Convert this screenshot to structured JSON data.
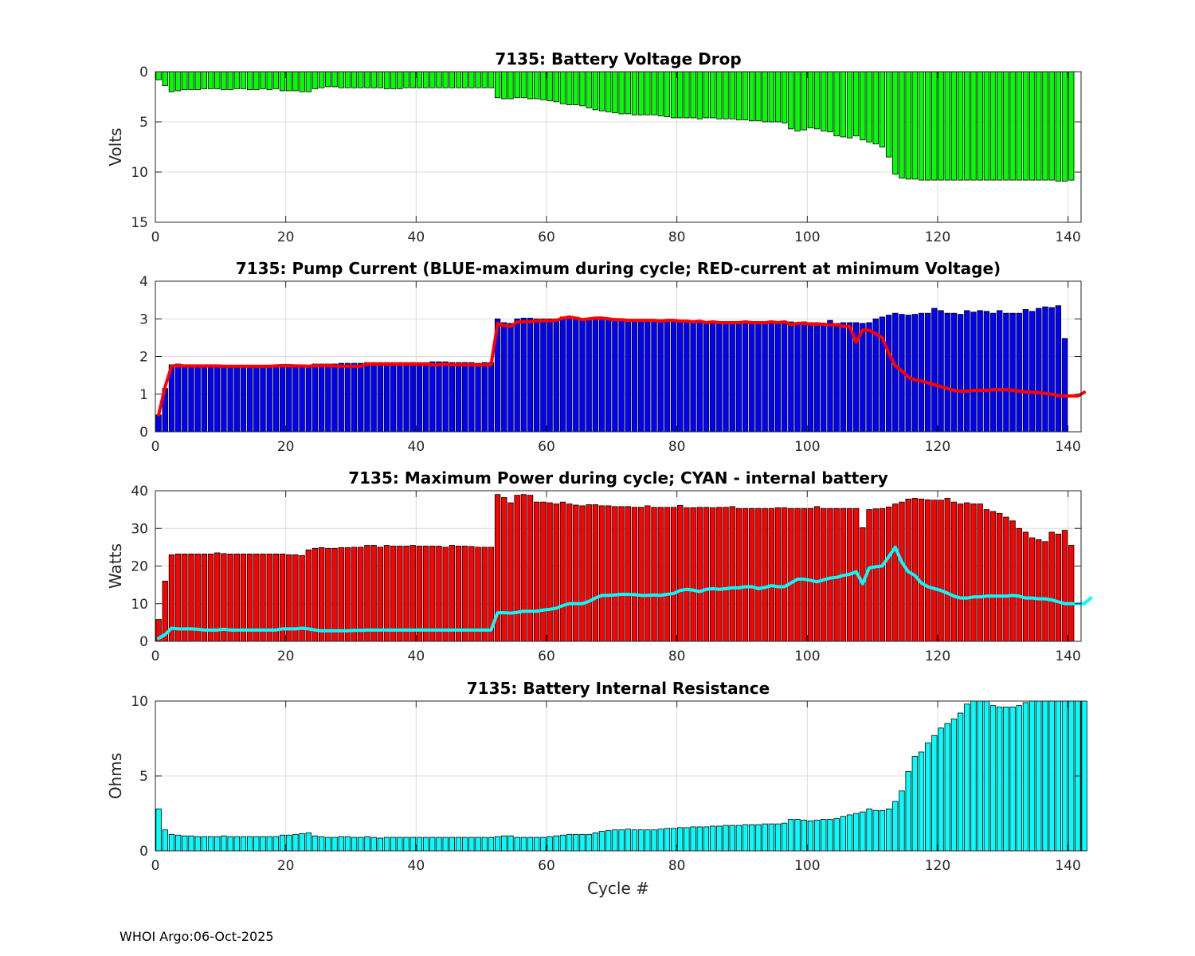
{
  "footer": "WHOI Argo:06-Oct-2025",
  "colors": {
    "voltage": "#00ff00",
    "pump": "#0000ff",
    "power": "#ff0000",
    "resistance": "#00ffff",
    "red_line": "#ff0000",
    "cyan_line": "#00ffff"
  },
  "chart_data": [
    {
      "type": "bar",
      "title": "7135: Battery Voltage Drop",
      "xlabel": "",
      "ylabel": "Volts",
      "xlim": [
        0,
        142
      ],
      "ylim": [
        0,
        15
      ],
      "y_reversed": true,
      "xticks": [
        0,
        20,
        40,
        60,
        80,
        100,
        120,
        140
      ],
      "yticks": [
        0,
        5,
        10,
        15
      ],
      "x_start": 0,
      "series": [
        {
          "name": "Voltage drop",
          "color": "#00ff00",
          "values": [
            0.8,
            1.4,
            2.0,
            1.9,
            1.8,
            1.8,
            1.8,
            1.7,
            1.7,
            1.7,
            1.8,
            1.8,
            1.7,
            1.7,
            1.8,
            1.8,
            1.7,
            1.8,
            1.7,
            1.9,
            1.9,
            1.9,
            2.0,
            2.0,
            1.7,
            1.6,
            1.5,
            1.5,
            1.6,
            1.6,
            1.6,
            1.6,
            1.6,
            1.6,
            1.6,
            1.7,
            1.7,
            1.7,
            1.6,
            1.6,
            1.6,
            1.6,
            1.6,
            1.6,
            1.6,
            1.6,
            1.6,
            1.6,
            1.6,
            1.6,
            1.6,
            1.6,
            2.6,
            2.7,
            2.7,
            2.6,
            2.6,
            2.7,
            2.7,
            2.8,
            2.9,
            3.0,
            3.2,
            3.3,
            3.3,
            3.4,
            3.6,
            3.8,
            3.9,
            4.0,
            4.1,
            4.2,
            4.2,
            4.3,
            4.3,
            4.3,
            4.3,
            4.4,
            4.5,
            4.6,
            4.6,
            4.6,
            4.6,
            4.7,
            4.6,
            4.6,
            4.7,
            4.7,
            4.7,
            4.8,
            4.8,
            4.9,
            4.9,
            5.0,
            5.0,
            5.0,
            5.1,
            5.7,
            5.9,
            5.8,
            5.6,
            5.7,
            5.9,
            6.0,
            6.4,
            6.5,
            6.6,
            6.4,
            6.8,
            7.0,
            7.2,
            7.5,
            8.5,
            10.2,
            10.6,
            10.7,
            10.7,
            10.8,
            10.8,
            10.8,
            10.8,
            10.8,
            10.8,
            10.8,
            10.8,
            10.8,
            10.8,
            10.8,
            10.8,
            10.8,
            10.8,
            10.8,
            10.8,
            10.8,
            10.8,
            10.8,
            10.8,
            10.8,
            10.9,
            10.9,
            10.8
          ]
        }
      ]
    },
    {
      "type": "bar",
      "title": "7135: Pump Current (BLUE-maximum during cycle; RED-current at minimum Voltage)",
      "xlabel": "",
      "ylabel": "",
      "xlim": [
        0,
        142
      ],
      "ylim": [
        0,
        4
      ],
      "y_reversed": false,
      "xticks": [
        0,
        20,
        40,
        60,
        80,
        100,
        120,
        140
      ],
      "yticks": [
        0,
        1,
        2,
        3,
        4
      ],
      "x_start": 0,
      "series": [
        {
          "name": "Maximum during cycle",
          "color": "#0000ff",
          "values": [
            0.45,
            1.15,
            1.78,
            1.8,
            1.78,
            1.78,
            1.78,
            1.78,
            1.78,
            1.78,
            1.76,
            1.76,
            1.76,
            1.76,
            1.76,
            1.76,
            1.76,
            1.76,
            1.76,
            1.78,
            1.78,
            1.78,
            1.78,
            1.76,
            1.8,
            1.8,
            1.8,
            1.8,
            1.82,
            1.82,
            1.82,
            1.82,
            1.84,
            1.84,
            1.84,
            1.84,
            1.84,
            1.84,
            1.84,
            1.84,
            1.84,
            1.84,
            1.86,
            1.86,
            1.86,
            1.84,
            1.84,
            1.84,
            1.84,
            1.82,
            1.84,
            1.84,
            3.0,
            2.9,
            2.88,
            3.0,
            3.02,
            3.02,
            3.0,
            3.0,
            3.0,
            3.0,
            3.05,
            3.05,
            3.05,
            3.0,
            3.02,
            3.02,
            3.02,
            3.0,
            3.0,
            3.0,
            2.98,
            2.98,
            2.98,
            2.98,
            2.98,
            2.98,
            2.98,
            2.98,
            2.96,
            2.96,
            2.94,
            2.94,
            2.92,
            2.94,
            2.92,
            2.92,
            2.92,
            2.92,
            2.92,
            2.92,
            2.92,
            2.92,
            2.92,
            2.92,
            2.94,
            2.92,
            2.9,
            2.92,
            2.9,
            2.9,
            2.88,
            2.96,
            2.88,
            2.9,
            2.9,
            2.9,
            2.88,
            2.9,
            3.0,
            3.05,
            3.1,
            3.15,
            3.12,
            3.1,
            3.12,
            3.15,
            3.15,
            3.28,
            3.22,
            3.15,
            3.15,
            3.12,
            3.22,
            3.18,
            3.22,
            3.2,
            3.15,
            3.22,
            3.15,
            3.15,
            3.15,
            3.25,
            3.2,
            3.28,
            3.32,
            3.3,
            3.35,
            2.48
          ]
        },
        {
          "name": "Current at minimum Voltage",
          "color": "#ff0000",
          "style": "line",
          "values": [
            0.45,
            1.2,
            1.75,
            1.76,
            1.75,
            1.75,
            1.75,
            1.75,
            1.75,
            1.75,
            1.74,
            1.74,
            1.74,
            1.74,
            1.74,
            1.74,
            1.74,
            1.74,
            1.75,
            1.76,
            1.76,
            1.75,
            1.75,
            1.74,
            1.76,
            1.76,
            1.76,
            1.75,
            1.74,
            1.74,
            1.74,
            1.74,
            1.8,
            1.8,
            1.8,
            1.8,
            1.8,
            1.8,
            1.8,
            1.8,
            1.8,
            1.8,
            1.78,
            1.78,
            1.8,
            1.78,
            1.78,
            1.78,
            1.78,
            1.77,
            1.78,
            1.78,
            2.88,
            2.82,
            2.8,
            2.92,
            2.92,
            2.92,
            2.95,
            2.95,
            2.95,
            2.96,
            3.02,
            3.05,
            3.02,
            2.98,
            3.0,
            3.02,
            3.02,
            3.0,
            2.98,
            2.98,
            2.96,
            2.96,
            2.96,
            2.96,
            2.96,
            2.94,
            2.96,
            2.96,
            2.94,
            2.94,
            2.92,
            2.94,
            2.9,
            2.92,
            2.9,
            2.9,
            2.9,
            2.9,
            2.92,
            2.9,
            2.9,
            2.9,
            2.92,
            2.9,
            2.92,
            2.85,
            2.88,
            2.88,
            2.86,
            2.86,
            2.86,
            2.84,
            2.84,
            2.8,
            2.8,
            2.38,
            2.7,
            2.7,
            2.6,
            2.5,
            2.1,
            1.75,
            1.62,
            1.45,
            1.38,
            1.35,
            1.3,
            1.25,
            1.2,
            1.15,
            1.1,
            1.08,
            1.08,
            1.1,
            1.1,
            1.1,
            1.12,
            1.12,
            1.12,
            1.1,
            1.08,
            1.06,
            1.05,
            1.04,
            1.02,
            1.0,
            0.96,
            0.95,
            0.95,
            0.95,
            1.05
          ]
        }
      ]
    },
    {
      "type": "bar",
      "title": "7135: Maximum Power during cycle; CYAN - internal battery",
      "xlabel": "",
      "ylabel": "Watts",
      "xlim": [
        0,
        142
      ],
      "ylim": [
        0,
        40
      ],
      "y_reversed": false,
      "xticks": [
        0,
        20,
        40,
        60,
        80,
        100,
        120,
        140
      ],
      "yticks": [
        0,
        10,
        20,
        30,
        40
      ],
      "x_start": 0,
      "series": [
        {
          "name": "Maximum power",
          "color": "#ff0000",
          "values": [
            5.8,
            16.0,
            23.0,
            23.2,
            23.2,
            23.2,
            23.2,
            23.2,
            23.2,
            23.5,
            23.3,
            23.2,
            23.2,
            23.2,
            23.2,
            23.2,
            23.2,
            23.2,
            23.2,
            23.2,
            23.0,
            23.0,
            22.8,
            24.3,
            24.7,
            24.9,
            24.7,
            24.7,
            24.9,
            24.9,
            25.0,
            25.0,
            25.5,
            25.5,
            25.0,
            25.5,
            25.3,
            25.3,
            25.3,
            25.5,
            25.3,
            25.3,
            25.3,
            25.3,
            25.0,
            25.5,
            25.3,
            25.3,
            25.2,
            25.0,
            25.0,
            25.0,
            39.0,
            38.2,
            36.8,
            38.8,
            39.0,
            38.8,
            37.0,
            37.0,
            36.8,
            36.5,
            37.0,
            36.5,
            36.2,
            36.0,
            36.3,
            36.3,
            36.0,
            36.0,
            35.8,
            35.8,
            35.8,
            35.6,
            35.6,
            36.0,
            35.6,
            35.6,
            35.6,
            35.6,
            36.1,
            35.5,
            35.5,
            35.6,
            35.6,
            35.5,
            35.6,
            35.6,
            35.8,
            35.3,
            35.3,
            35.3,
            35.3,
            35.3,
            35.3,
            35.5,
            35.5,
            35.3,
            35.3,
            35.3,
            35.3,
            35.8,
            35.3,
            35.3,
            35.3,
            35.3,
            35.3,
            35.3,
            30.2,
            35.0,
            35.2,
            35.3,
            35.7,
            36.5,
            37.0,
            37.8,
            38.0,
            37.8,
            37.6,
            37.5,
            37.5,
            38.0,
            37.0,
            36.5,
            36.8,
            36.5,
            36.5,
            35.0,
            34.5,
            34.0,
            33.0,
            32.0,
            30.0,
            29.0,
            27.5,
            27.0,
            26.5,
            29.0,
            28.5,
            29.5,
            25.5
          ]
        },
        {
          "name": "Internal battery",
          "color": "#00ffff",
          "style": "line",
          "values": [
            0.8,
            1.8,
            3.5,
            3.3,
            3.3,
            3.3,
            3.2,
            3.0,
            3.0,
            3.0,
            3.2,
            3.0,
            3.0,
            3.0,
            3.0,
            3.0,
            3.0,
            3.0,
            3.0,
            3.3,
            3.3,
            3.3,
            3.5,
            3.3,
            3.0,
            2.8,
            2.8,
            2.8,
            2.8,
            2.8,
            2.9,
            2.9,
            3.0,
            3.0,
            3.0,
            3.0,
            3.0,
            3.0,
            3.0,
            3.0,
            3.0,
            3.0,
            3.0,
            3.0,
            3.0,
            3.0,
            3.0,
            3.0,
            3.0,
            3.0,
            3.0,
            3.0,
            7.6,
            7.6,
            7.5,
            7.7,
            8.0,
            8.0,
            8.0,
            8.3,
            8.5,
            8.8,
            9.5,
            10.0,
            10.0,
            10.0,
            10.6,
            11.5,
            12.2,
            12.2,
            12.3,
            12.5,
            12.5,
            12.4,
            12.2,
            12.2,
            12.3,
            12.2,
            12.5,
            12.7,
            13.5,
            13.8,
            13.6,
            13.2,
            13.8,
            14.0,
            13.8,
            14.0,
            14.2,
            14.2,
            14.5,
            14.5,
            14.0,
            14.3,
            14.8,
            14.5,
            14.5,
            15.5,
            16.5,
            16.5,
            16.2,
            15.8,
            16.3,
            16.8,
            17.0,
            17.5,
            17.8,
            18.5,
            15.3,
            19.5,
            19.8,
            20.0,
            22.5,
            25.0,
            21.0,
            18.5,
            17.5,
            15.5,
            14.5,
            14.0,
            13.5,
            12.8,
            12.0,
            11.5,
            11.5,
            11.8,
            11.8,
            12.0,
            12.0,
            12.0,
            12.0,
            12.2,
            12.0,
            11.5,
            11.5,
            11.3,
            11.3,
            11.0,
            10.5,
            10.0,
            10.0,
            10.0,
            10.0,
            11.5
          ]
        }
      ]
    },
    {
      "type": "bar",
      "title": "7135: Battery Internal Resistance",
      "xlabel": "Cycle #",
      "ylabel": "Ohms",
      "xlim": [
        0,
        142
      ],
      "ylim": [
        0,
        10
      ],
      "y_reversed": false,
      "xticks": [
        0,
        20,
        40,
        60,
        80,
        100,
        120,
        140
      ],
      "yticks": [
        0,
        5,
        10
      ],
      "x_start": 0,
      "series": [
        {
          "name": "Internal resistance",
          "color": "#00ffff",
          "values": [
            2.8,
            1.4,
            1.1,
            1.05,
            1.0,
            1.0,
            0.95,
            0.95,
            0.95,
            0.95,
            1.0,
            0.95,
            0.95,
            0.95,
            0.95,
            0.95,
            0.95,
            0.95,
            0.95,
            1.05,
            1.05,
            1.1,
            1.15,
            1.2,
            1.0,
            0.95,
            0.9,
            0.9,
            0.95,
            0.95,
            0.9,
            0.9,
            0.95,
            0.9,
            0.85,
            0.9,
            0.9,
            0.9,
            0.9,
            0.9,
            0.9,
            0.9,
            0.9,
            0.9,
            0.9,
            0.9,
            0.9,
            0.9,
            0.9,
            0.9,
            0.9,
            0.9,
            0.95,
            1.0,
            1.0,
            0.9,
            0.9,
            0.9,
            0.9,
            0.9,
            0.95,
            1.0,
            1.05,
            1.1,
            1.1,
            1.1,
            1.1,
            1.2,
            1.3,
            1.35,
            1.4,
            1.4,
            1.45,
            1.4,
            1.4,
            1.4,
            1.4,
            1.45,
            1.5,
            1.5,
            1.55,
            1.55,
            1.6,
            1.6,
            1.6,
            1.65,
            1.65,
            1.7,
            1.7,
            1.7,
            1.75,
            1.75,
            1.75,
            1.8,
            1.8,
            1.8,
            1.85,
            2.1,
            2.1,
            2.05,
            2.0,
            2.05,
            2.1,
            2.1,
            2.15,
            2.3,
            2.4,
            2.5,
            2.6,
            2.8,
            2.7,
            2.7,
            2.8,
            3.3,
            4.0,
            5.3,
            6.3,
            6.6,
            7.2,
            7.7,
            8.2,
            8.5,
            8.8,
            9.2,
            9.8,
            10.0,
            10.0,
            10.0,
            9.7,
            9.6,
            9.6,
            9.6,
            9.7,
            9.9,
            10.0,
            10.0,
            10.0,
            10.0,
            10.0,
            10.0,
            10.0,
            10.0,
            10.0
          ]
        }
      ]
    }
  ]
}
